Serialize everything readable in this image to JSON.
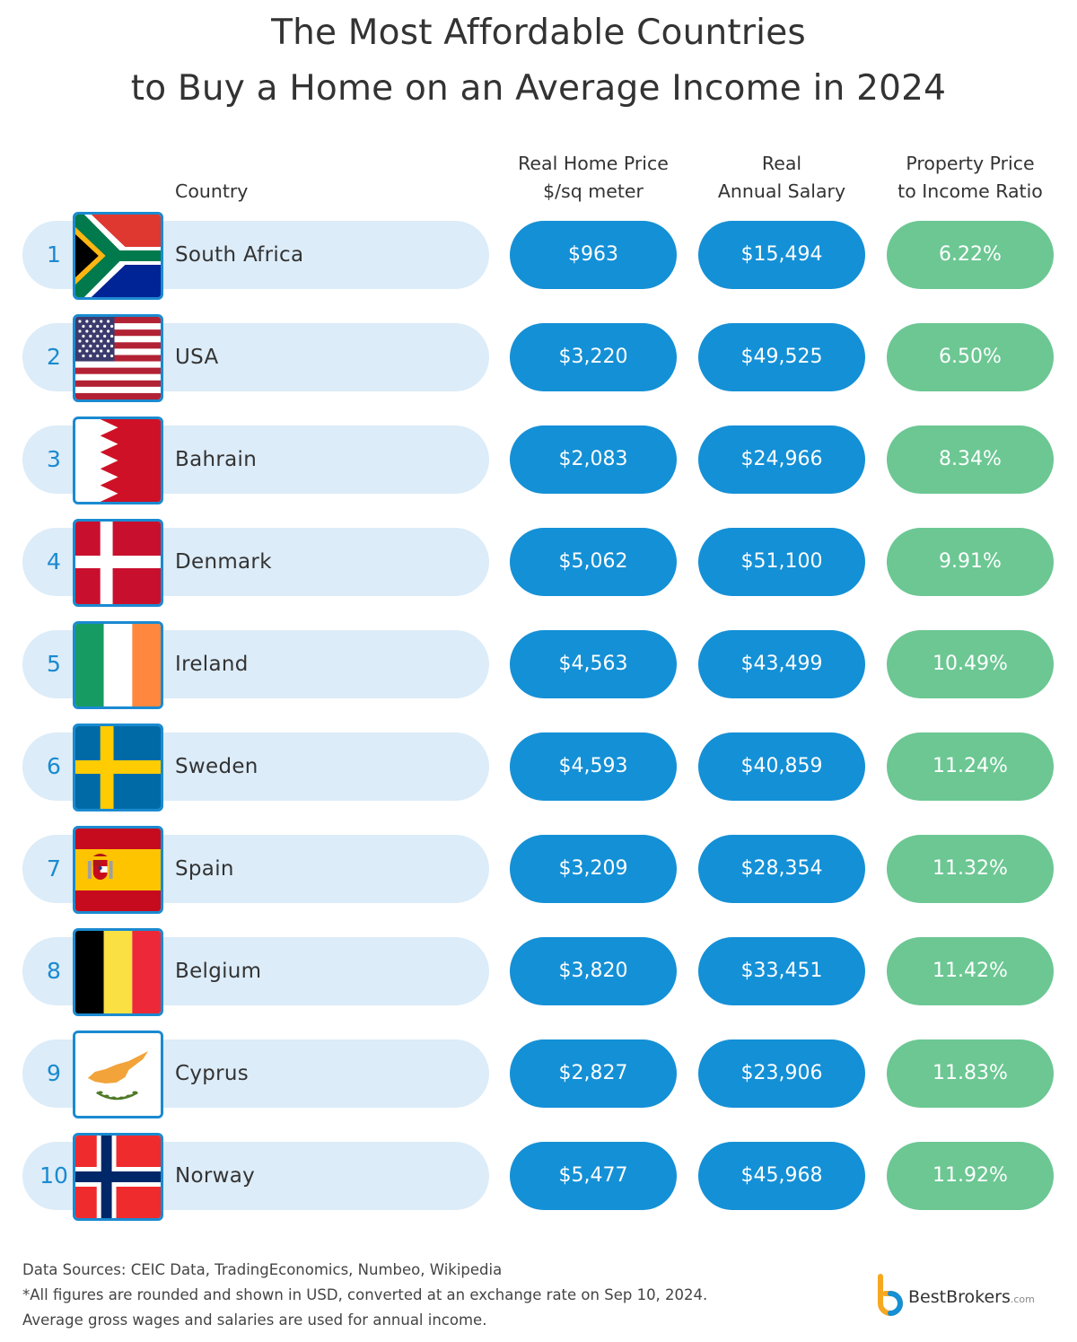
{
  "chart_data": {
    "type": "table",
    "title_lines": [
      "The Most Affordable Countries",
      "to Buy a Home on an Average Income in 2024"
    ],
    "columns": {
      "country": "Country",
      "price": [
        "Real Home Price",
        "$/sq meter"
      ],
      "salary": [
        "Real",
        "Annual Salary"
      ],
      "ratio": [
        "Property Price",
        "to Income Ratio"
      ]
    },
    "rows": [
      {
        "rank": "1",
        "country": "South Africa",
        "flag": "south-africa-flag-icon",
        "price": "$963",
        "salary": "$15,494",
        "ratio": "6.22%"
      },
      {
        "rank": "2",
        "country": "USA",
        "flag": "usa-flag-icon",
        "price": "$3,220",
        "salary": "$49,525",
        "ratio": "6.50%"
      },
      {
        "rank": "3",
        "country": "Bahrain",
        "flag": "bahrain-flag-icon",
        "price": "$2,083",
        "salary": "$24,966",
        "ratio": "8.34%"
      },
      {
        "rank": "4",
        "country": "Denmark",
        "flag": "denmark-flag-icon",
        "price": "$5,062",
        "salary": "$51,100",
        "ratio": "9.91%"
      },
      {
        "rank": "5",
        "country": "Ireland",
        "flag": "ireland-flag-icon",
        "price": "$4,563",
        "salary": "$43,499",
        "ratio": "10.49%"
      },
      {
        "rank": "6",
        "country": "Sweden",
        "flag": "sweden-flag-icon",
        "price": "$4,593",
        "salary": "$40,859",
        "ratio": "11.24%"
      },
      {
        "rank": "7",
        "country": "Spain",
        "flag": "spain-flag-icon",
        "price": "$3,209",
        "salary": "$28,354",
        "ratio": "11.32%"
      },
      {
        "rank": "8",
        "country": "Belgium",
        "flag": "belgium-flag-icon",
        "price": "$3,820",
        "salary": "$33,451",
        "ratio": "11.42%"
      },
      {
        "rank": "9",
        "country": "Cyprus",
        "flag": "cyprus-flag-icon",
        "price": "$2,827",
        "salary": "$23,906",
        "ratio": "11.83%"
      },
      {
        "rank": "10",
        "country": "Norway",
        "flag": "norway-flag-icon",
        "price": "$5,477",
        "salary": "$45,968",
        "ratio": "11.92%"
      }
    ]
  },
  "footer": {
    "sources": "Data Sources: CEIC Data, TradingEconomics, Numbeo, Wikipedia",
    "note_usd": "*All figures are rounded and shown in USD, converted at an exchange rate on Sep 10, 2024.",
    "note_wages": "Average gross wages and salaries are used for annual income."
  },
  "brand": {
    "name": "BestBrokers",
    "suffix": ".com",
    "icon": "bestbrokers-logo-icon"
  },
  "colors": {
    "accent_blue": "#1490d6",
    "ratio_green": "#6cc793",
    "row_background": "#dcecf8",
    "rank_text": "#1a8ad0"
  }
}
